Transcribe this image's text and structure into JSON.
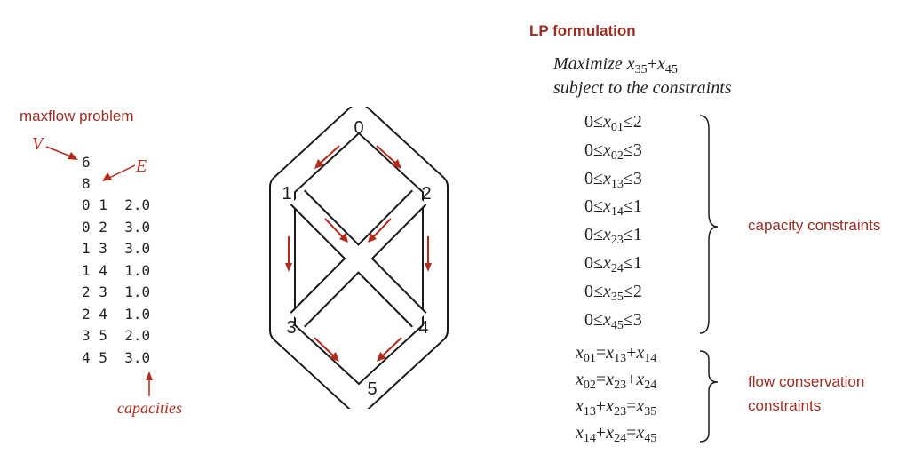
{
  "maxflow": {
    "title": "maxflow problem",
    "v_label": "V",
    "e_label": "E",
    "num_vertices": "6",
    "num_edges": "8",
    "edges": [
      {
        "from": "0",
        "to": "1",
        "cap": "2.0"
      },
      {
        "from": "0",
        "to": "2",
        "cap": "3.0"
      },
      {
        "from": "1",
        "to": "3",
        "cap": "3.0"
      },
      {
        "from": "1",
        "to": "4",
        "cap": "1.0"
      },
      {
        "from": "2",
        "to": "3",
        "cap": "1.0"
      },
      {
        "from": "2",
        "to": "4",
        "cap": "1.0"
      },
      {
        "from": "3",
        "to": "5",
        "cap": "2.0"
      },
      {
        "from": "4",
        "to": "5",
        "cap": "3.0"
      }
    ],
    "capacities_label": "capacities"
  },
  "graph": {
    "vertices": [
      "0",
      "1",
      "2",
      "3",
      "4",
      "5"
    ]
  },
  "lp": {
    "title": "LP formulation",
    "objective_word": "Maximize",
    "objective_terms": [
      {
        "v": "x",
        "s": "35"
      },
      {
        "v": "x",
        "s": "45"
      }
    ],
    "subject_to": "subject to the constraints",
    "capacity": [
      {
        "lo": "0",
        "s": "01",
        "hi": "2"
      },
      {
        "lo": "0",
        "s": "02",
        "hi": "3"
      },
      {
        "lo": "0",
        "s": "13",
        "hi": "3"
      },
      {
        "lo": "0",
        "s": "14",
        "hi": "1"
      },
      {
        "lo": "0",
        "s": "23",
        "hi": "1"
      },
      {
        "lo": "0",
        "s": "24",
        "hi": "1"
      },
      {
        "lo": "0",
        "s": "35",
        "hi": "2"
      },
      {
        "lo": "0",
        "s": "45",
        "hi": "3"
      }
    ],
    "capacity_label": "capacity constraints",
    "conservation": [
      {
        "lhs": [
          "01"
        ],
        "rhs": [
          "13",
          "14"
        ]
      },
      {
        "lhs": [
          "02"
        ],
        "rhs": [
          "23",
          "24"
        ]
      },
      {
        "lhs": [
          "13",
          "23"
        ],
        "rhs": [
          "35"
        ]
      },
      {
        "lhs": [
          "14",
          "24"
        ],
        "rhs": [
          "45"
        ]
      }
    ],
    "conservation_label_1": "flow conservation",
    "conservation_label_2": "constraints"
  },
  "colors": {
    "accent": "#b22a1c",
    "label": "#9b2d22",
    "text": "#222222"
  }
}
